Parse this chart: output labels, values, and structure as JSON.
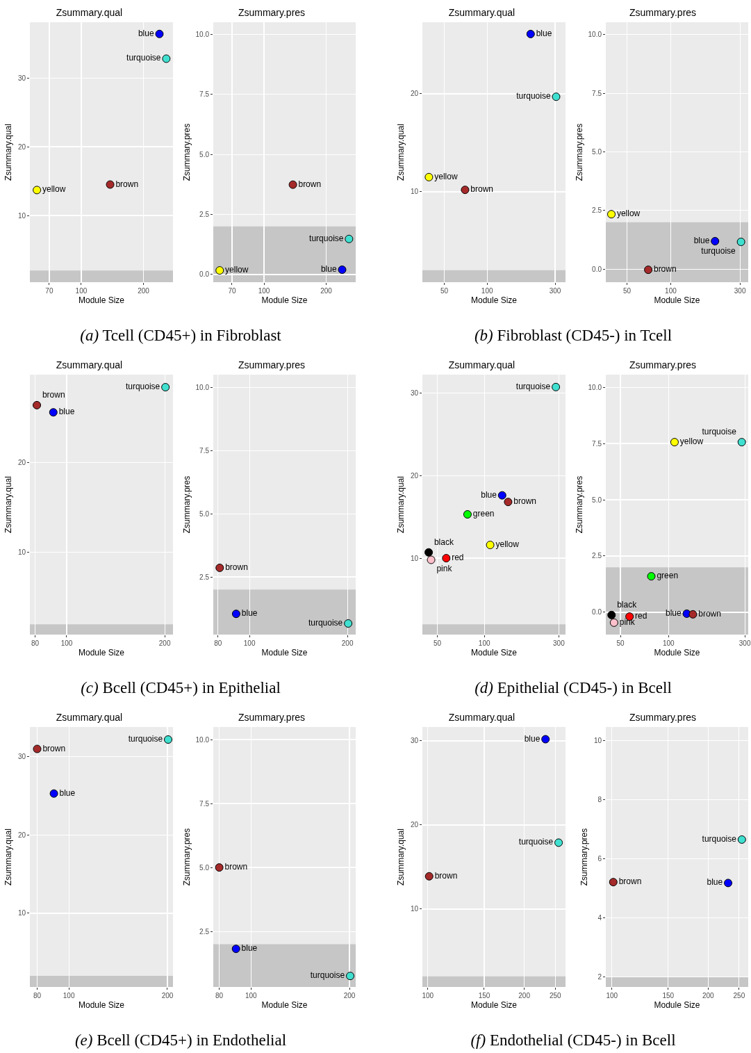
{
  "chart_data": [
    {
      "type": "scatter",
      "title": "Zsummary.qual",
      "xlabel": "Module Size",
      "ylabel": "Zsummary.qual",
      "log": "x",
      "grid": true,
      "legend": false,
      "marker": "circle",
      "annotations": [
        "(a) Tcell (CD45+) in Fibroblast"
      ],
      "xlim": [
        56.4,
        278
      ],
      "xticks": [
        70,
        100,
        200
      ],
      "ylim": [
        0.3,
        38.1
      ],
      "yticks": [
        10,
        20,
        30
      ],
      "bands": [
        {
          "axis": "y",
          "from": 0.3,
          "to": 2,
          "color": "#c6c6c6"
        }
      ],
      "series": [
        {
          "name": "blue",
          "color": "#0000ff",
          "x": [
            239
          ],
          "values": [
            36.4
          ]
        },
        {
          "name": "turquoise",
          "color": "#40e0d0",
          "x": [
            258
          ],
          "values": [
            32.8
          ]
        },
        {
          "name": "brown",
          "color": "#a52a2a",
          "x": [
            138
          ],
          "values": [
            14.5
          ]
        },
        {
          "name": "yellow",
          "color": "#ffff00",
          "x": [
            61
          ],
          "values": [
            13.7
          ]
        }
      ]
    },
    {
      "type": "scatter",
      "title": "Zsummary.pres",
      "xlabel": "Module Size",
      "ylabel": "Zsummary.pres",
      "log": "x",
      "grid": true,
      "legend": false,
      "marker": "circle",
      "xlim": [
        56.8,
        278
      ],
      "xticks": [
        70,
        100,
        200
      ],
      "ylim": [
        -0.32,
        10.5
      ],
      "yticks": [
        {
          "value": 0,
          "label": "0.0"
        },
        2.5,
        {
          "value": 5,
          "label": "5.0"
        },
        7.5,
        {
          "value": 10,
          "label": "10.0"
        }
      ],
      "bands": [
        {
          "axis": "y",
          "from": -0.32,
          "to": 2,
          "color": "#c6c6c6"
        }
      ],
      "series": [
        {
          "name": "brown",
          "color": "#a52a2a",
          "x": [
            138
          ],
          "values": [
            3.74
          ]
        },
        {
          "name": "turquoise",
          "color": "#40e0d0",
          "x": [
            258
          ],
          "values": [
            1.48
          ]
        },
        {
          "name": "yellow",
          "color": "#ffff00",
          "x": [
            61
          ],
          "values": [
            0.17
          ]
        },
        {
          "name": "blue",
          "color": "#0000ff",
          "x": [
            239
          ],
          "values": [
            0.2
          ]
        }
      ]
    },
    {
      "type": "scatter",
      "title": "Zsummary.qual",
      "xlabel": "Module Size",
      "ylabel": "Zsummary.qual",
      "log": "x",
      "grid": true,
      "legend": false,
      "marker": "circle",
      "annotations": [
        "(b) Fibroblast (CD45-) in Tcell"
      ],
      "xlim": [
        35.1,
        355
      ],
      "xticks": [
        50,
        100,
        300
      ],
      "ylim": [
        0.78,
        27.3
      ],
      "yticks": [
        10,
        20
      ],
      "bands": [
        {
          "axis": "y",
          "from": 0.78,
          "to": 2,
          "color": "#c6c6c6"
        }
      ],
      "series": [
        {
          "name": "blue",
          "color": "#0000ff",
          "x": [
            202
          ],
          "values": [
            26.1
          ]
        },
        {
          "name": "turquoise",
          "color": "#40e0d0",
          "x": [
            305
          ],
          "values": [
            19.7
          ]
        },
        {
          "name": "yellow",
          "color": "#ffff00",
          "x": [
            39
          ],
          "values": [
            11.5
          ]
        },
        {
          "name": "brown",
          "color": "#a52a2a",
          "x": [
            70
          ],
          "values": [
            10.2
          ]
        }
      ]
    },
    {
      "type": "scatter",
      "title": "Zsummary.pres",
      "xlabel": "Module Size",
      "ylabel": "Zsummary.pres",
      "log": "x",
      "grid": true,
      "legend": false,
      "marker": "circle",
      "xlim": [
        35.7,
        342
      ],
      "xticks": [
        50,
        100,
        300
      ],
      "ylim": [
        -0.56,
        10.53
      ],
      "yticks": [
        {
          "value": 0,
          "label": "0.0"
        },
        2.5,
        {
          "value": 5,
          "label": "5.0"
        },
        7.5,
        {
          "value": 10,
          "label": "10.0"
        }
      ],
      "bands": [
        {
          "axis": "y",
          "from": -0.56,
          "to": 2,
          "color": "#c6c6c6"
        }
      ],
      "series": [
        {
          "name": "yellow",
          "color": "#ffff00",
          "x": [
            39
          ],
          "values": [
            2.34
          ]
        },
        {
          "name": "blue",
          "color": "#0000ff",
          "x": [
            202
          ],
          "values": [
            1.19
          ]
        },
        {
          "name": "turquoise",
          "color": "#40e0d0",
          "x": [
            305
          ],
          "values": [
            1.16
          ]
        },
        {
          "name": "brown",
          "color": "#a52a2a",
          "x": [
            70
          ],
          "values": [
            -0.03
          ]
        }
      ]
    },
    {
      "type": "scatter",
      "title": "Zsummary.qual",
      "xlabel": "Module Size",
      "ylabel": "Zsummary.qual",
      "log": "x",
      "grid": true,
      "legend": false,
      "marker": "circle",
      "annotations": [
        "(c) Bcell (CD45+) in Epithelial"
      ],
      "xlim": [
        77.1,
        212
      ],
      "xticks": [
        80,
        100,
        200
      ],
      "ylim": [
        0.85,
        29.8
      ],
      "yticks": [
        10,
        20
      ],
      "bands": [
        {
          "axis": "y",
          "from": 0.85,
          "to": 2,
          "color": "#c6c6c6"
        }
      ],
      "series": [
        {
          "name": "turquoise",
          "color": "#40e0d0",
          "x": [
            201
          ],
          "values": [
            28.4
          ]
        },
        {
          "name": "brown",
          "color": "#a52a2a",
          "x": [
            81
          ],
          "values": [
            26.4
          ]
        },
        {
          "name": "blue",
          "color": "#0000ff",
          "x": [
            91
          ],
          "values": [
            25.6
          ]
        }
      ]
    },
    {
      "type": "scatter",
      "title": "Zsummary.pres",
      "xlabel": "Module Size",
      "ylabel": "Zsummary.pres",
      "log": "x",
      "grid": true,
      "legend": false,
      "marker": "circle",
      "xlim": [
        77.4,
        212
      ],
      "xticks": [
        80,
        100,
        200
      ],
      "ylim": [
        0.22,
        10.5
      ],
      "yticks": [
        2.5,
        {
          "value": 5,
          "label": "5.0"
        },
        7.5,
        {
          "value": 10,
          "label": "10.0"
        }
      ],
      "bands": [
        {
          "axis": "y",
          "from": 0.22,
          "to": 2,
          "color": "#c6c6c6"
        }
      ],
      "series": [
        {
          "name": "brown",
          "color": "#a52a2a",
          "x": [
            81
          ],
          "values": [
            2.86
          ]
        },
        {
          "name": "blue",
          "color": "#0000ff",
          "x": [
            91
          ],
          "values": [
            1.04
          ]
        },
        {
          "name": "turquoise",
          "color": "#40e0d0",
          "x": [
            201
          ],
          "values": [
            0.66
          ]
        }
      ]
    },
    {
      "type": "scatter",
      "title": "Zsummary.qual",
      "xlabel": "Module Size",
      "ylabel": "Zsummary.qual",
      "log": "x",
      "grid": true,
      "legend": false,
      "marker": "circle",
      "annotations": [
        "(d) Epithelial (CD45-) in Bcell"
      ],
      "xlim": [
        40.1,
        331
      ],
      "xticks": [
        50,
        100,
        300
      ],
      "ylim": [
        0.76,
        32.2
      ],
      "yticks": [
        10,
        20,
        30
      ],
      "bands": [
        {
          "axis": "y",
          "from": 0.76,
          "to": 2,
          "color": "#c6c6c6"
        }
      ],
      "series": [
        {
          "name": "turquoise",
          "color": "#40e0d0",
          "x": [
            287
          ],
          "values": [
            30.7
          ]
        },
        {
          "name": "blue",
          "color": "#0000ff",
          "x": [
            130
          ],
          "values": [
            17.6
          ]
        },
        {
          "name": "brown",
          "color": "#a52a2a",
          "x": [
            142
          ],
          "values": [
            16.8
          ]
        },
        {
          "name": "green",
          "color": "#00ff00",
          "x": [
            78
          ],
          "values": [
            15.3
          ]
        },
        {
          "name": "yellow",
          "color": "#ffff00",
          "x": [
            109
          ],
          "values": [
            11.6
          ]
        },
        {
          "name": "black",
          "color": "#000000",
          "x": [
            44
          ],
          "values": [
            10.7
          ]
        },
        {
          "name": "pink",
          "color": "#ffc0cb",
          "x": [
            45.6
          ],
          "values": [
            9.8
          ]
        },
        {
          "name": "red",
          "color": "#ff0000",
          "x": [
            57
          ],
          "values": [
            10
          ]
        }
      ]
    },
    {
      "type": "scatter",
      "title": "Zsummary.pres",
      "xlabel": "Module Size",
      "ylabel": "Zsummary.pres",
      "log": "x",
      "grid": true,
      "legend": false,
      "marker": "circle",
      "xlim": [
        40.5,
        315
      ],
      "xticks": [
        50,
        100,
        300
      ],
      "ylim": [
        -0.99,
        10.56
      ],
      "yticks": [
        {
          "value": 0,
          "label": "0.0"
        },
        2.5,
        {
          "value": 5,
          "label": "5.0"
        },
        7.5,
        {
          "value": 10,
          "label": "10.0"
        }
      ],
      "bands": [
        {
          "axis": "y",
          "from": -0.99,
          "to": 2,
          "color": "#c6c6c6"
        }
      ],
      "series": [
        {
          "name": "yellow",
          "color": "#ffff00",
          "x": [
            109
          ],
          "values": [
            7.56
          ]
        },
        {
          "name": "turquoise",
          "color": "#40e0d0",
          "x": [
            287
          ],
          "values": [
            7.56
          ]
        },
        {
          "name": "green",
          "color": "#00ff00",
          "x": [
            78
          ],
          "values": [
            1.6
          ]
        },
        {
          "name": "black",
          "color": "#000000",
          "x": [
            44
          ],
          "values": [
            -0.12
          ]
        },
        {
          "name": "pink",
          "color": "#ffc0cb",
          "x": [
            45.6
          ],
          "values": [
            -0.46
          ]
        },
        {
          "name": "red",
          "color": "#ff0000",
          "x": [
            57
          ],
          "values": [
            -0.19
          ]
        },
        {
          "name": "blue",
          "color": "#0000ff",
          "x": [
            130
          ],
          "values": [
            -0.06
          ]
        },
        {
          "name": "brown",
          "color": "#a52a2a",
          "x": [
            142
          ],
          "values": [
            -0.09
          ]
        }
      ]
    },
    {
      "type": "scatter",
      "title": "Zsummary.qual",
      "xlabel": "Module Size",
      "ylabel": "Zsummary.qual",
      "log": "x",
      "grid": true,
      "legend": false,
      "marker": "circle",
      "annotations": [
        "(e) Bcell (CD45+) in Endothelial"
      ],
      "xlim": [
        76,
        208
      ],
      "xticks": [
        80,
        100,
        200
      ],
      "ylim": [
        0.58,
        33.8
      ],
      "yticks": [
        10,
        20,
        30
      ],
      "bands": [
        {
          "axis": "y",
          "from": 0.58,
          "to": 2,
          "color": "#c6c6c6"
        }
      ],
      "series": [
        {
          "name": "turquoise",
          "color": "#40e0d0",
          "x": [
            201
          ],
          "values": [
            32.2
          ]
        },
        {
          "name": "brown",
          "color": "#a52a2a",
          "x": [
            80
          ],
          "values": [
            31
          ]
        },
        {
          "name": "blue",
          "color": "#0000ff",
          "x": [
            90
          ],
          "values": [
            25.3
          ]
        }
      ]
    },
    {
      "type": "scatter",
      "title": "Zsummary.pres",
      "xlabel": "Module Size",
      "ylabel": "Zsummary.pres",
      "log": "x",
      "grid": true,
      "legend": false,
      "marker": "circle",
      "xlim": [
        76.7,
        209
      ],
      "xticks": [
        80,
        100,
        200
      ],
      "ylim": [
        0.33,
        10.49
      ],
      "yticks": [
        2.5,
        {
          "value": 5,
          "label": "5.0"
        },
        7.5,
        {
          "value": 10,
          "label": "10.0"
        }
      ],
      "bands": [
        {
          "axis": "y",
          "from": 0.33,
          "to": 2,
          "color": "#c6c6c6"
        }
      ],
      "series": [
        {
          "name": "brown",
          "color": "#a52a2a",
          "x": [
            80
          ],
          "values": [
            5
          ]
        },
        {
          "name": "blue",
          "color": "#0000ff",
          "x": [
            90
          ],
          "values": [
            1.82
          ]
        },
        {
          "name": "turquoise",
          "color": "#40e0d0",
          "x": [
            201
          ],
          "values": [
            0.76
          ]
        }
      ]
    },
    {
      "type": "scatter",
      "title": "Zsummary.qual",
      "xlabel": "Module Size",
      "ylabel": "Zsummary.qual",
      "log": "x",
      "grid": true,
      "legend": false,
      "marker": "circle",
      "annotations": [
        "(f) Endothelial (CD45-) in Bcell"
      ],
      "xlim": [
        96.2,
        269
      ],
      "xticks": [
        100,
        150,
        200,
        250
      ],
      "ylim": [
        0.74,
        31.65
      ],
      "yticks": [
        10,
        20,
        30
      ],
      "bands": [
        {
          "axis": "y",
          "from": 0.74,
          "to": 2,
          "color": "#c6c6c6"
        }
      ],
      "series": [
        {
          "name": "blue",
          "color": "#0000ff",
          "x": [
            233
          ],
          "values": [
            30.2
          ]
        },
        {
          "name": "turquoise",
          "color": "#40e0d0",
          "x": [
            256
          ],
          "values": [
            17.9
          ]
        },
        {
          "name": "brown",
          "color": "#a52a2a",
          "x": [
            101
          ],
          "values": [
            13.9
          ]
        }
      ]
    },
    {
      "type": "scatter",
      "title": "Zsummary.pres",
      "xlabel": "Module Size",
      "ylabel": "Zsummary.pres",
      "log": "x",
      "grid": true,
      "legend": false,
      "marker": "circle",
      "xlim": [
        95.7,
        267
      ],
      "xticks": [
        100,
        150,
        200,
        250
      ],
      "ylim": [
        1.65,
        10.45
      ],
      "yticks": [
        2,
        4,
        6,
        8,
        10
      ],
      "bands": [
        {
          "axis": "y",
          "from": 1.65,
          "to": 2,
          "color": "#c6c6c6"
        }
      ],
      "series": [
        {
          "name": "turquoise",
          "color": "#40e0d0",
          "x": [
            255
          ],
          "values": [
            6.64
          ]
        },
        {
          "name": "blue",
          "color": "#0000ff",
          "x": [
            231
          ],
          "values": [
            5.17
          ]
        },
        {
          "name": "brown",
          "color": "#a52a2a",
          "x": [
            101
          ],
          "values": [
            5.2
          ]
        }
      ]
    }
  ]
}
